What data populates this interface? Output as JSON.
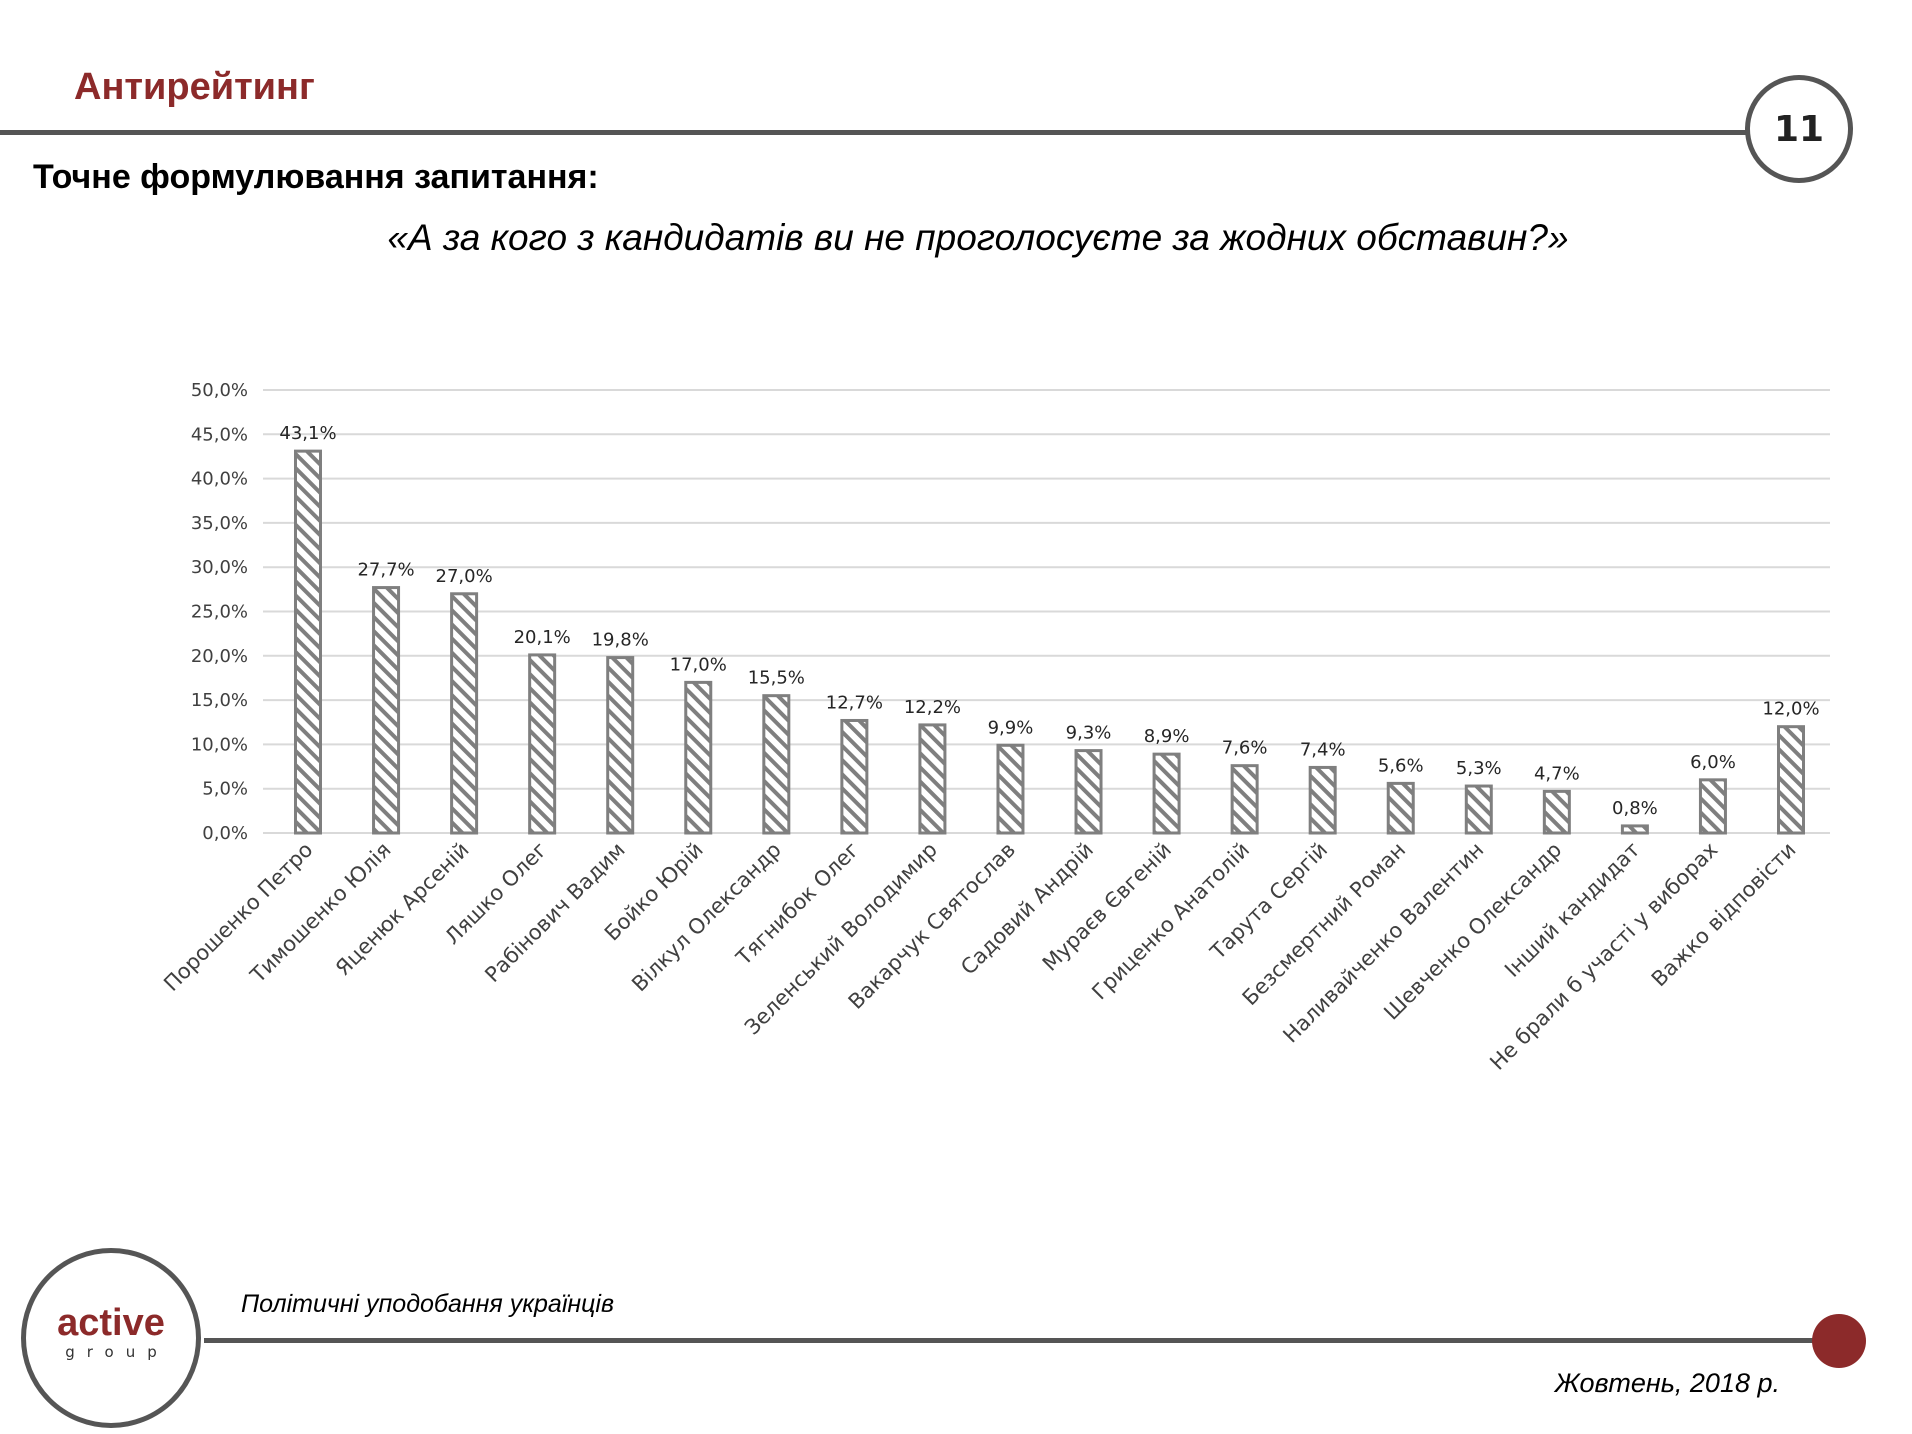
{
  "header": {
    "title": "Антирейтинг",
    "page_number": "11"
  },
  "question": {
    "label": "Точне формулювання запитання:",
    "text": "«А за кого з кандидатів ви не проголосуєте за жодних обставин?»"
  },
  "colors": {
    "accent": "#8c2a2a",
    "bar_stroke": "#7f7f7f",
    "grid": "#d9d9d9"
  },
  "chart_data": {
    "type": "bar",
    "title": "",
    "xlabel": "",
    "ylabel": "",
    "ylim": [
      0,
      50
    ],
    "yticks": [
      "0,0%",
      "5,0%",
      "10,0%",
      "15,0%",
      "20,0%",
      "25,0%",
      "30,0%",
      "35,0%",
      "40,0%",
      "45,0%",
      "50,0%"
    ],
    "grid": true,
    "categories": [
      "Порошенко Петро",
      "Тимошенко Юлія",
      "Яценюк Арсеній",
      "Ляшко Олег",
      "Рабінович Вадим",
      "Бойко Юрій",
      "Вілкул Олександр",
      "Тягнибок Олег",
      "Зеленський Володимир",
      "Вакарчук Святослав",
      "Садовий Андрій",
      "Мураєв Євгеній",
      "Гриценко Анатолій",
      "Тарута Сергій",
      "Безсмертний Роман",
      "Наливайченко Валентин",
      "Шевченко Олександр",
      "Інший кандидат",
      "Не брали б участі у виборах",
      "Важко відповісти"
    ],
    "values": [
      43.1,
      27.7,
      27.0,
      20.1,
      19.8,
      17.0,
      15.5,
      12.7,
      12.2,
      9.9,
      9.3,
      8.9,
      7.6,
      7.4,
      5.6,
      5.3,
      4.7,
      0.8,
      6.0,
      12.0
    ],
    "labels": [
      "43,1%",
      "27,7%",
      "27,0%",
      "20,1%",
      "19,8%",
      "17,0%",
      "15,5%",
      "12,7%",
      "12,2%",
      "9,9%",
      "9,3%",
      "8,9%",
      "7,6%",
      "7,4%",
      "5,6%",
      "5,3%",
      "4,7%",
      "0,8%",
      "6,0%",
      "12,0%"
    ]
  },
  "footer": {
    "logo_text": "active",
    "logo_sub": "group",
    "subtitle": "Політичні уподобання українців",
    "date": "Жовтень, 2018 р."
  }
}
